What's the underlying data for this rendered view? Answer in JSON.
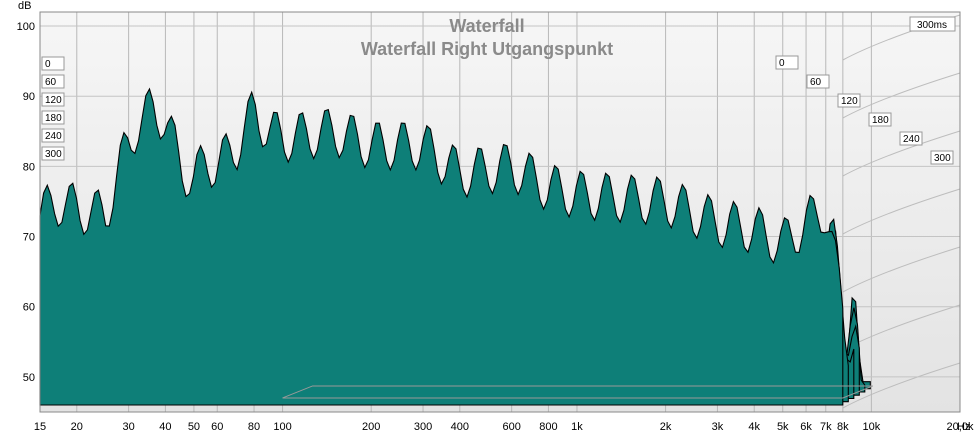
{
  "chart_data": {
    "type": "area",
    "title": "Waterfall",
    "subtitle": "Waterfall Right Utgangspunkt",
    "ylabel": "dB",
    "xunit": "Hz",
    "xscale": "log",
    "xlim": [
      15,
      20000
    ],
    "ylim": [
      45,
      102
    ],
    "x_ticks": [
      {
        "value": 15,
        "label": "15"
      },
      {
        "value": 20,
        "label": "20"
      },
      {
        "value": 30,
        "label": "30"
      },
      {
        "value": 40,
        "label": "40"
      },
      {
        "value": 50,
        "label": "50"
      },
      {
        "value": 60,
        "label": "60"
      },
      {
        "value": 80,
        "label": "80"
      },
      {
        "value": 100,
        "label": "100"
      },
      {
        "value": 200,
        "label": "200"
      },
      {
        "value": 300,
        "label": "300"
      },
      {
        "value": 400,
        "label": "400"
      },
      {
        "value": 600,
        "label": "600"
      },
      {
        "value": 800,
        "label": "800"
      },
      {
        "value": 1000,
        "label": "1k"
      },
      {
        "value": 2000,
        "label": "2k"
      },
      {
        "value": 3000,
        "label": "3k"
      },
      {
        "value": 4000,
        "label": "4k"
      },
      {
        "value": 5000,
        "label": "5k"
      },
      {
        "value": 6000,
        "label": "6k"
      },
      {
        "value": 7000,
        "label": "7k"
      },
      {
        "value": 8000,
        "label": "8k"
      },
      {
        "value": 10000,
        "label": "10k"
      },
      {
        "value": 20000,
        "label": "20,0k"
      }
    ],
    "y_ticks": [
      {
        "value": 50,
        "label": "50"
      },
      {
        "value": 60,
        "label": "60"
      },
      {
        "value": 70,
        "label": "70"
      },
      {
        "value": 80,
        "label": "80"
      },
      {
        "value": 90,
        "label": "90"
      },
      {
        "value": 100,
        "label": "100"
      }
    ],
    "time_axis_label": "300ms",
    "time_slices_ms": [
      0,
      60,
      120,
      180,
      240,
      300
    ],
    "time_ticks": [
      {
        "value": 0,
        "label": "0"
      },
      {
        "value": 60,
        "label": "60"
      },
      {
        "value": 120,
        "label": "120"
      },
      {
        "value": 180,
        "label": "180"
      },
      {
        "value": 240,
        "label": "240"
      },
      {
        "value": 300,
        "label": "300"
      }
    ],
    "front_slice_approx": {
      "freq_hz": [
        15,
        17,
        20,
        25,
        28,
        32,
        36,
        40,
        45,
        50,
        55,
        60,
        70,
        80,
        90,
        100,
        150,
        200,
        300,
        400,
        600,
        800,
        1000,
        2000,
        3000,
        4000,
        5000,
        6000,
        7000,
        8000
      ],
      "db": [
        73,
        75,
        74,
        73,
        80,
        86,
        88,
        87,
        80,
        78,
        81,
        80,
        83,
        88,
        85,
        84,
        85,
        83,
        83,
        79,
        80,
        77,
        76,
        75,
        72,
        71,
        69,
        72,
        74,
        60
      ]
    },
    "fill_color": "#0e7f78",
    "line_color": "#000000",
    "grid": true
  }
}
